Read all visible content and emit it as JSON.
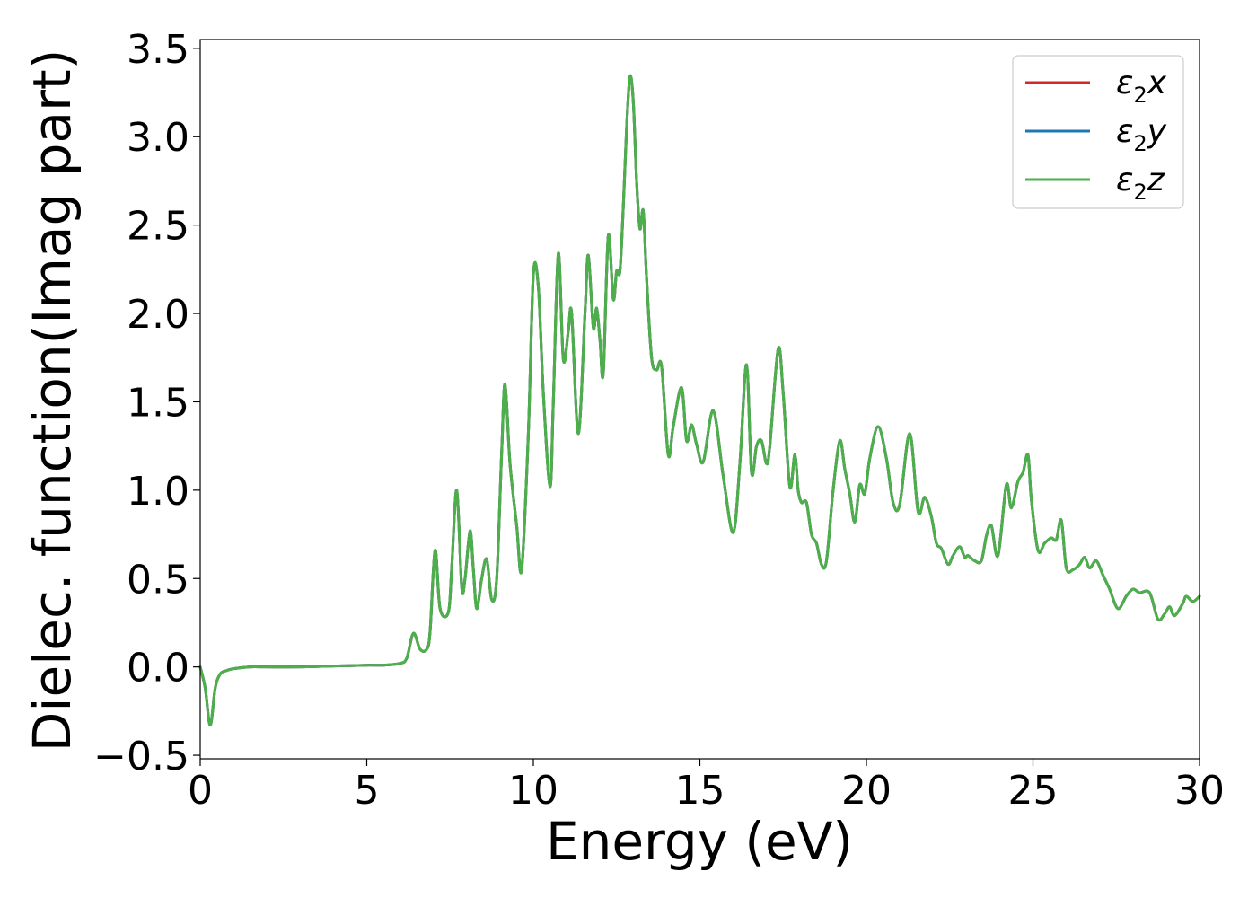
{
  "chart_data": {
    "type": "line",
    "title": "",
    "xlabel": "Energy (eV)",
    "ylabel": "Dielec. function(Imag part)",
    "xlim": [
      0,
      30
    ],
    "ylim": [
      -0.52,
      3.55
    ],
    "xticks": [
      0,
      5,
      10,
      15,
      20,
      25,
      30
    ],
    "xtick_labels": [
      "0",
      "5",
      "10",
      "15",
      "20",
      "25",
      "30"
    ],
    "yticks": [
      -0.5,
      0.0,
      0.5,
      1.0,
      1.5,
      2.0,
      2.5,
      3.0,
      3.5
    ],
    "ytick_labels": [
      "−0.5",
      "0.0",
      "0.5",
      "1.0",
      "1.5",
      "2.0",
      "2.5",
      "3.0",
      "3.5"
    ],
    "grid": false,
    "legend_position": "top-right",
    "legend": [
      {
        "symbol": "ε",
        "sub": "2",
        "axis": "x",
        "color": "#d62728"
      },
      {
        "symbol": "ε",
        "sub": "2",
        "axis": "y",
        "color": "#1f77b4"
      },
      {
        "symbol": "ε",
        "sub": "2",
        "axis": "z",
        "color": "#4daf4a"
      }
    ],
    "x": [
      0.0,
      0.15,
      0.3,
      0.45,
      0.6,
      0.8,
      1.0,
      1.5,
      2.0,
      3.0,
      4.0,
      5.0,
      5.5,
      6.0,
      6.2,
      6.4,
      6.6,
      6.8,
      6.9,
      7.05,
      7.2,
      7.45,
      7.55,
      7.7,
      7.85,
      7.95,
      8.1,
      8.2,
      8.3,
      8.45,
      8.6,
      8.75,
      8.9,
      9.05,
      9.15,
      9.3,
      9.5,
      9.65,
      9.85,
      10.0,
      10.15,
      10.3,
      10.5,
      10.6,
      10.75,
      10.9,
      11.05,
      11.15,
      11.35,
      11.55,
      11.65,
      11.8,
      11.9,
      12.0,
      12.1,
      12.25,
      12.4,
      12.5,
      12.6,
      12.7,
      12.8,
      12.9,
      13.0,
      13.1,
      13.2,
      13.3,
      13.4,
      13.55,
      13.7,
      13.85,
      14.05,
      14.2,
      14.45,
      14.6,
      14.75,
      14.9,
      15.1,
      15.4,
      15.7,
      16.0,
      16.2,
      16.4,
      16.55,
      16.7,
      16.85,
      17.0,
      17.1,
      17.35,
      17.5,
      17.7,
      17.85,
      17.95,
      18.05,
      18.2,
      18.35,
      18.5,
      18.65,
      18.8,
      19.0,
      19.2,
      19.35,
      19.5,
      19.65,
      19.8,
      19.95,
      20.1,
      20.35,
      20.6,
      20.8,
      21.0,
      21.3,
      21.55,
      21.75,
      21.95,
      22.1,
      22.25,
      22.45,
      22.6,
      22.8,
      22.95,
      23.05,
      23.25,
      23.45,
      23.6,
      23.75,
      23.95,
      24.2,
      24.35,
      24.55,
      24.7,
      24.85,
      24.95,
      25.15,
      25.35,
      25.55,
      25.7,
      25.85,
      26.0,
      26.2,
      26.4,
      26.55,
      26.7,
      26.9,
      27.1,
      27.3,
      27.55,
      27.8,
      28.0,
      28.2,
      28.5,
      28.75,
      28.95,
      29.1,
      29.25,
      29.5,
      29.6,
      29.8,
      30.0
    ],
    "series": [
      {
        "name": "ε2x",
        "color": "#d62728",
        "values": [
          0.0,
          -0.12,
          -0.33,
          -0.12,
          -0.04,
          -0.02,
          -0.01,
          0.0,
          0.0,
          0.0,
          0.005,
          0.01,
          0.01,
          0.02,
          0.05,
          0.19,
          0.1,
          0.1,
          0.2,
          0.66,
          0.33,
          0.31,
          0.56,
          1.0,
          0.45,
          0.5,
          0.77,
          0.55,
          0.33,
          0.5,
          0.61,
          0.38,
          0.5,
          1.22,
          1.6,
          1.15,
          0.8,
          0.55,
          1.32,
          2.22,
          2.15,
          1.55,
          1.02,
          1.5,
          2.34,
          1.74,
          1.9,
          2.0,
          1.32,
          2.0,
          2.33,
          1.92,
          2.03,
          1.85,
          1.66,
          2.44,
          2.08,
          2.24,
          2.24,
          2.6,
          3.05,
          3.34,
          3.2,
          2.75,
          2.48,
          2.58,
          2.2,
          1.75,
          1.68,
          1.7,
          1.2,
          1.36,
          1.58,
          1.28,
          1.37,
          1.26,
          1.16,
          1.45,
          1.08,
          0.76,
          1.15,
          1.71,
          1.1,
          1.25,
          1.28,
          1.15,
          1.25,
          1.8,
          1.55,
          1.02,
          1.2,
          1.0,
          0.93,
          0.93,
          0.75,
          0.7,
          0.58,
          0.6,
          1.0,
          1.28,
          1.12,
          0.98,
          0.82,
          1.03,
          0.98,
          1.18,
          1.36,
          1.18,
          0.93,
          0.92,
          1.32,
          0.88,
          0.96,
          0.85,
          0.7,
          0.67,
          0.58,
          0.63,
          0.68,
          0.62,
          0.63,
          0.6,
          0.6,
          0.74,
          0.8,
          0.63,
          1.03,
          0.9,
          1.05,
          1.1,
          1.2,
          0.95,
          0.66,
          0.7,
          0.73,
          0.72,
          0.83,
          0.56,
          0.55,
          0.58,
          0.62,
          0.56,
          0.6,
          0.52,
          0.44,
          0.33,
          0.4,
          0.44,
          0.42,
          0.42,
          0.27,
          0.3,
          0.34,
          0.29,
          0.36,
          0.4,
          0.37,
          0.4
        ]
      },
      {
        "name": "ε2y",
        "color": "#1f77b4",
        "values": [
          0.0,
          -0.12,
          -0.33,
          -0.12,
          -0.04,
          -0.02,
          -0.01,
          0.0,
          0.0,
          0.0,
          0.005,
          0.01,
          0.01,
          0.02,
          0.05,
          0.19,
          0.1,
          0.1,
          0.2,
          0.66,
          0.33,
          0.31,
          0.56,
          1.0,
          0.45,
          0.5,
          0.77,
          0.55,
          0.33,
          0.5,
          0.61,
          0.38,
          0.5,
          1.22,
          1.6,
          1.15,
          0.8,
          0.55,
          1.32,
          2.22,
          2.15,
          1.55,
          1.02,
          1.5,
          2.34,
          1.74,
          1.9,
          2.0,
          1.32,
          2.0,
          2.33,
          1.92,
          2.03,
          1.85,
          1.66,
          2.44,
          2.08,
          2.24,
          2.24,
          2.6,
          3.05,
          3.34,
          3.2,
          2.75,
          2.48,
          2.58,
          2.2,
          1.75,
          1.68,
          1.7,
          1.2,
          1.36,
          1.58,
          1.28,
          1.37,
          1.26,
          1.16,
          1.45,
          1.08,
          0.76,
          1.15,
          1.71,
          1.1,
          1.25,
          1.28,
          1.15,
          1.25,
          1.8,
          1.55,
          1.02,
          1.2,
          1.0,
          0.93,
          0.93,
          0.75,
          0.7,
          0.58,
          0.6,
          1.0,
          1.28,
          1.12,
          0.98,
          0.82,
          1.03,
          0.98,
          1.18,
          1.36,
          1.18,
          0.93,
          0.92,
          1.32,
          0.88,
          0.96,
          0.85,
          0.7,
          0.67,
          0.58,
          0.63,
          0.68,
          0.62,
          0.63,
          0.6,
          0.6,
          0.74,
          0.8,
          0.63,
          1.03,
          0.9,
          1.05,
          1.1,
          1.2,
          0.95,
          0.66,
          0.7,
          0.73,
          0.72,
          0.83,
          0.56,
          0.55,
          0.58,
          0.62,
          0.56,
          0.6,
          0.52,
          0.44,
          0.33,
          0.4,
          0.44,
          0.42,
          0.42,
          0.27,
          0.3,
          0.34,
          0.29,
          0.36,
          0.4,
          0.37,
          0.4
        ]
      },
      {
        "name": "ε2z",
        "color": "#4daf4a",
        "values": [
          0.0,
          -0.12,
          -0.33,
          -0.12,
          -0.04,
          -0.02,
          -0.01,
          0.0,
          0.0,
          0.0,
          0.005,
          0.01,
          0.01,
          0.02,
          0.05,
          0.19,
          0.1,
          0.1,
          0.2,
          0.66,
          0.33,
          0.31,
          0.56,
          1.0,
          0.45,
          0.5,
          0.77,
          0.55,
          0.33,
          0.5,
          0.61,
          0.38,
          0.5,
          1.22,
          1.6,
          1.15,
          0.8,
          0.55,
          1.32,
          2.22,
          2.15,
          1.55,
          1.02,
          1.5,
          2.34,
          1.74,
          1.9,
          2.0,
          1.32,
          2.0,
          2.33,
          1.92,
          2.03,
          1.85,
          1.66,
          2.44,
          2.08,
          2.24,
          2.24,
          2.6,
          3.05,
          3.34,
          3.2,
          2.75,
          2.48,
          2.58,
          2.2,
          1.75,
          1.68,
          1.7,
          1.2,
          1.36,
          1.58,
          1.28,
          1.37,
          1.26,
          1.16,
          1.45,
          1.08,
          0.76,
          1.15,
          1.71,
          1.1,
          1.25,
          1.28,
          1.15,
          1.25,
          1.8,
          1.55,
          1.02,
          1.2,
          1.0,
          0.93,
          0.93,
          0.75,
          0.7,
          0.58,
          0.6,
          1.0,
          1.28,
          1.12,
          0.98,
          0.82,
          1.03,
          0.98,
          1.18,
          1.36,
          1.18,
          0.93,
          0.92,
          1.32,
          0.88,
          0.96,
          0.85,
          0.7,
          0.67,
          0.58,
          0.63,
          0.68,
          0.62,
          0.63,
          0.6,
          0.6,
          0.74,
          0.8,
          0.63,
          1.03,
          0.9,
          1.05,
          1.1,
          1.2,
          0.95,
          0.66,
          0.7,
          0.73,
          0.72,
          0.83,
          0.56,
          0.55,
          0.58,
          0.62,
          0.56,
          0.6,
          0.52,
          0.44,
          0.33,
          0.4,
          0.44,
          0.42,
          0.42,
          0.27,
          0.3,
          0.34,
          0.29,
          0.36,
          0.4,
          0.37,
          0.4
        ]
      }
    ]
  }
}
